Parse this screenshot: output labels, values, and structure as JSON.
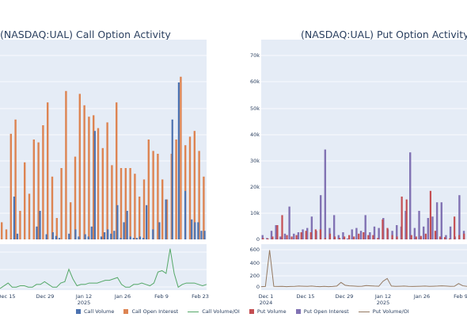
{
  "chart_data": [
    {
      "type": "bar",
      "title": "(NASDAQ:UAL) Call Option Activity",
      "xticks": [
        {
          "label": "Dec 15",
          "sublabel": ""
        },
        {
          "label": "Dec 29",
          "sublabel": ""
        },
        {
          "label": "Jan 12",
          "sublabel": "2025"
        },
        {
          "label": "Jan 26",
          "sublabel": ""
        },
        {
          "label": "Feb 9",
          "sublabel": ""
        },
        {
          "label": "Feb 23",
          "sublabel": ""
        }
      ],
      "series": [
        {
          "name": "Call Volume",
          "color": "#4c72b0",
          "values": [
            0,
            0,
            0,
            100,
            15000,
            2000,
            0,
            0,
            0,
            0,
            0,
            4500,
            10000,
            0,
            1800,
            0,
            2500,
            1200,
            500,
            0,
            0,
            2000,
            0,
            3500,
            1000,
            0,
            1800,
            1000,
            4500,
            38000,
            0,
            1000,
            2500,
            3500,
            2000,
            3000,
            12000,
            500,
            6000,
            10000,
            1000,
            500,
            500,
            1000,
            500,
            12000,
            0,
            3500,
            0,
            6000,
            0,
            14000,
            0,
            42000,
            0,
            55000,
            0,
            17000,
            0,
            7000,
            6000,
            6000,
            3000,
            3000
          ]
        },
        {
          "name": "Call Open Interest",
          "color": "#dd8452",
          "values": [
            6000,
            3500,
            37000,
            42000,
            10000,
            27000,
            16000,
            35000,
            34000,
            40000,
            48000,
            22000,
            7500,
            25000,
            52000,
            13000,
            29000,
            51000,
            47000,
            43000,
            43500,
            39000,
            32000,
            41000,
            26000,
            48000,
            25000,
            25000,
            25000,
            23000,
            15000,
            21000,
            35000,
            31000,
            30000,
            21000,
            14000,
            30000,
            35000,
            57000,
            33000,
            36000,
            38000,
            31000,
            22000
          ]
        }
      ],
      "ylim": [
        0,
        70000
      ]
    },
    {
      "type": "line",
      "series": [
        {
          "name": "Call Volume/OI",
          "color": "#55a868",
          "values": [
            0,
            0.2,
            0.4,
            0.1,
            0.1,
            0.2,
            0.2,
            0.1,
            0.1,
            0.3,
            0.3,
            0.5,
            0.3,
            0.1,
            0.1,
            0.4,
            0.5,
            1.4,
            0.7,
            0.2,
            0.3,
            0.3,
            0.4,
            0.4,
            0.4,
            0.5,
            0.6,
            0.6,
            0.7,
            0.8,
            0.3,
            0.1,
            0.1,
            0.3,
            0.3,
            0.4,
            0.3,
            0.2,
            0.4,
            1.2,
            1.3,
            1.1,
            2.9,
            1.1,
            0.1,
            0.3,
            0.4,
            0.4,
            0.4,
            0.3,
            0.2,
            0.3
          ]
        }
      ]
    },
    {
      "type": "bar",
      "title": "(NASDAQ:UAL) Put Option Activity",
      "yticks": [
        "0",
        "10k",
        "20k",
        "30k",
        "40k",
        "50k",
        "60k",
        "70k"
      ],
      "ylim": [
        0,
        70000
      ],
      "xticks": [
        {
          "label": "Dec 1",
          "sublabel": "2024"
        },
        {
          "label": "Dec 15",
          "sublabel": ""
        },
        {
          "label": "Dec 29",
          "sublabel": ""
        },
        {
          "label": "Jan 12",
          "sublabel": "2025"
        },
        {
          "label": "Jan 26",
          "sublabel": ""
        },
        {
          "label": "Feb 9",
          "sublabel": ""
        }
      ],
      "series": [
        {
          "name": "Put Volume",
          "color": "#c44e52",
          "values": [
            500,
            300,
            1000,
            5000,
            8500,
            1500,
            1000,
            1500,
            2500,
            3000,
            2500,
            3500,
            3500,
            500,
            2000,
            1000,
            500,
            1000,
            1500,
            1000,
            2000,
            2500,
            1500,
            1500,
            500,
            7000,
            4000,
            1500,
            1000,
            15000,
            14000,
            1500,
            1000,
            1200,
            2000,
            17000,
            3000,
            1000,
            800,
            300,
            8000,
            1500,
            2000
          ]
        },
        {
          "name": "Put Open Interest",
          "color": "#8172b3",
          "values": [
            1500,
            500,
            3000,
            5000,
            1000,
            2000,
            11500,
            2000,
            2500,
            3500,
            4000,
            8000,
            3000,
            15500,
            31500,
            4000,
            8500,
            1500,
            2500,
            300,
            3500,
            4000,
            3000,
            8500,
            2500,
            4500,
            4000,
            7500,
            3500,
            3000,
            5000,
            4500,
            10000,
            30500,
            4000,
            10000,
            4500,
            7500,
            8000,
            13000,
            13000,
            1500,
            4500,
            1000,
            15500,
            3000
          ]
        }
      ]
    },
    {
      "type": "line",
      "yticks": [
        "0",
        "200",
        "400",
        "600"
      ],
      "ylim": [
        0,
        700
      ],
      "series": [
        {
          "name": "Put Volume/OI",
          "color": "#937860",
          "values": [
            5,
            8,
            650,
            10,
            8,
            10,
            5,
            8,
            10,
            15,
            12,
            10,
            15,
            8,
            5,
            10,
            5,
            8,
            15,
            80,
            30,
            20,
            15,
            10,
            12,
            25,
            20,
            15,
            12,
            100,
            150,
            15,
            10,
            12,
            15,
            10,
            8,
            10,
            12,
            15,
            10,
            12,
            15,
            20,
            15,
            10,
            12,
            60,
            20,
            10
          ]
        }
      ]
    }
  ],
  "legend": [
    {
      "label": "Call Volume",
      "color": "#4c72b0",
      "kind": "box"
    },
    {
      "label": "Call Open Interest",
      "color": "#dd8452",
      "kind": "box"
    },
    {
      "label": "Call Volume/OI",
      "color": "#55a868",
      "kind": "line"
    },
    {
      "label": "Put Volume",
      "color": "#c44e52",
      "kind": "box"
    },
    {
      "label": "Put Open Interest",
      "color": "#8172b3",
      "kind": "box"
    },
    {
      "label": "Put Volume/OI",
      "color": "#937860",
      "kind": "line"
    }
  ]
}
